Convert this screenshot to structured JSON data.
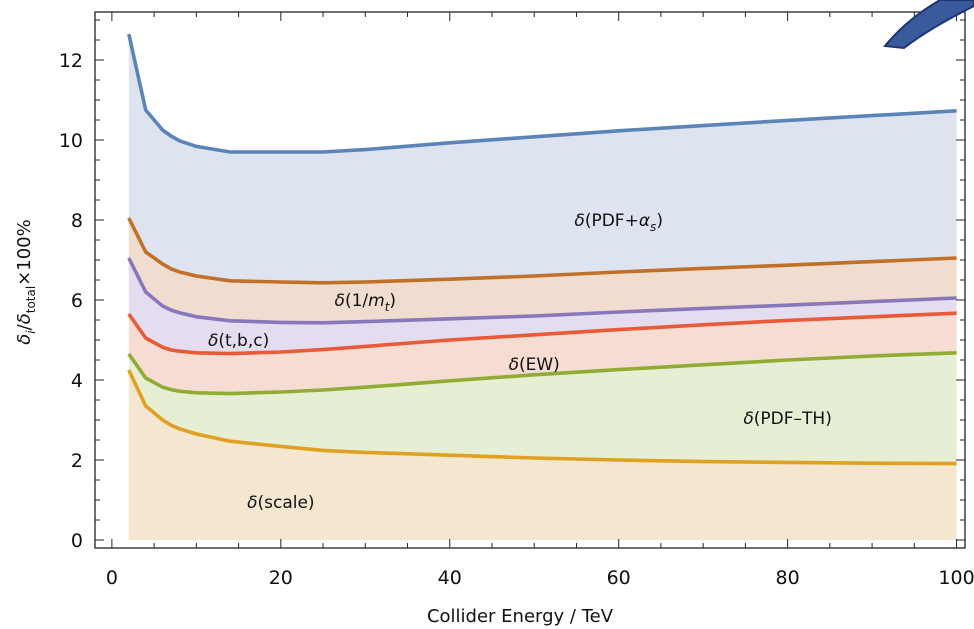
{
  "chart_data": {
    "type": "area",
    "xlabel": "Collider Energy / TeV",
    "ylabel": {
      "base": "δ",
      "sub_i": "i",
      "slash": "/",
      "base2": "δ",
      "sub_total": "total",
      "suffix": "×100%"
    },
    "xlim": [
      -2,
      101
    ],
    "ylim": [
      -0.2,
      13.2
    ],
    "xticks": [
      0,
      20,
      40,
      60,
      80,
      100
    ],
    "yticks": [
      0,
      2,
      4,
      6,
      8,
      10,
      12
    ],
    "grid": false,
    "legend": "none",
    "x": [
      2,
      4,
      6,
      7,
      8,
      10,
      14,
      20,
      25,
      30,
      40,
      50,
      60,
      70,
      80,
      90,
      100
    ],
    "series": [
      {
        "key": "scale",
        "color": "#e0a020",
        "fill": "#f5e6cf",
        "values": [
          4.25,
          3.35,
          3.0,
          2.87,
          2.78,
          2.65,
          2.47,
          2.34,
          2.24,
          2.19,
          2.12,
          2.05,
          2.0,
          1.96,
          1.94,
          1.92,
          1.91
        ]
      },
      {
        "key": "pdf_th",
        "color": "#8fad35",
        "fill": "#e6eed3",
        "values": [
          4.65,
          4.05,
          3.82,
          3.76,
          3.72,
          3.68,
          3.66,
          3.7,
          3.75,
          3.82,
          3.98,
          4.13,
          4.26,
          4.38,
          4.5,
          4.6,
          4.68
        ]
      },
      {
        "key": "ew",
        "color": "#e85a38",
        "fill": "#f7dcd4",
        "values": [
          5.65,
          5.05,
          4.82,
          4.75,
          4.72,
          4.68,
          4.66,
          4.7,
          4.76,
          4.84,
          5.0,
          5.13,
          5.26,
          5.38,
          5.49,
          5.58,
          5.67
        ]
      },
      {
        "key": "tbc",
        "color": "#8877bb",
        "fill": "#e3ddef",
        "values": [
          7.05,
          6.2,
          5.85,
          5.75,
          5.68,
          5.58,
          5.48,
          5.44,
          5.43,
          5.46,
          5.53,
          5.6,
          5.7,
          5.79,
          5.87,
          5.96,
          6.05
        ]
      },
      {
        "key": "mt",
        "color": "#c07028",
        "fill": "#f1ddd0",
        "values": [
          8.05,
          7.2,
          6.9,
          6.78,
          6.7,
          6.6,
          6.48,
          6.45,
          6.43,
          6.45,
          6.52,
          6.6,
          6.7,
          6.79,
          6.87,
          6.96,
          7.05
        ]
      },
      {
        "key": "pdf_as",
        "color": "#5b84b8",
        "fill": "#dee3f0",
        "values": [
          12.65,
          10.75,
          10.25,
          10.1,
          9.98,
          9.84,
          9.7,
          9.7,
          9.7,
          9.76,
          9.93,
          10.08,
          10.23,
          10.36,
          10.49,
          10.61,
          10.73
        ]
      }
    ],
    "annotations": [
      {
        "key": "pdf_as",
        "text": "δ(PDF+α",
        "sub": "s",
        "tail": ")",
        "x": 60,
        "y": 8.0
      },
      {
        "key": "mt",
        "text": "δ(1/m",
        "sub": "t",
        "tail": ")",
        "x": 30,
        "y": 6.0
      },
      {
        "key": "tbc",
        "text": "δ(t,b,c)",
        "x": 15,
        "y": 5.0
      },
      {
        "key": "ew",
        "text": "δ(EW)",
        "x": 50,
        "y": 4.4
      },
      {
        "key": "pdf_th",
        "text": "δ(PDF–TH)",
        "x": 80,
        "y": 3.05
      },
      {
        "key": "scale",
        "text": "δ(scale)",
        "x": 20,
        "y": 0.95
      }
    ]
  },
  "logo": {
    "color": "#3a5a9e",
    "edge": "#1e3570"
  }
}
